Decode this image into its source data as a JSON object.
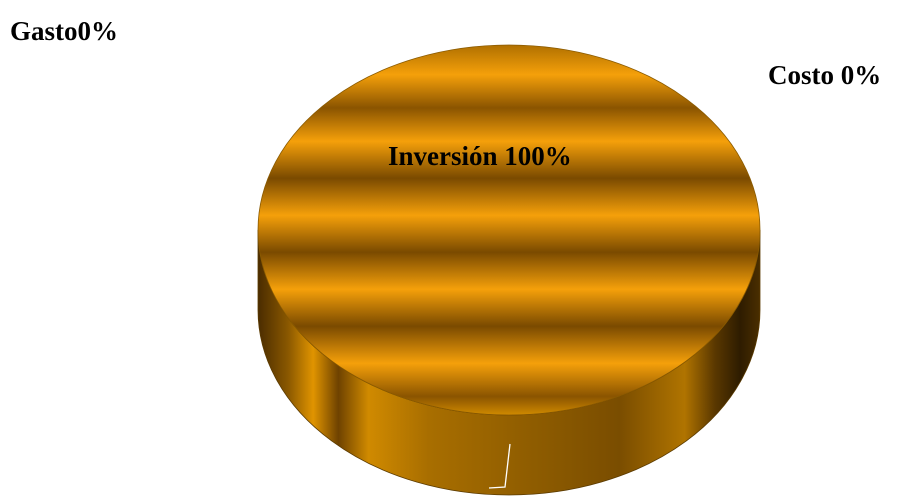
{
  "chart_data": {
    "type": "pie",
    "style": "3d",
    "slices": [
      {
        "label": "Gasto0%",
        "value": 0
      },
      {
        "label": "Costo 0%",
        "value": 0
      },
      {
        "label": "Inversión 100%",
        "value": 100
      }
    ],
    "colors": {
      "slice_light": "#f5a00a",
      "slice_dark": "#7a4a00",
      "side_dark": "#3d2500",
      "leader_line": "#ffffff"
    }
  }
}
